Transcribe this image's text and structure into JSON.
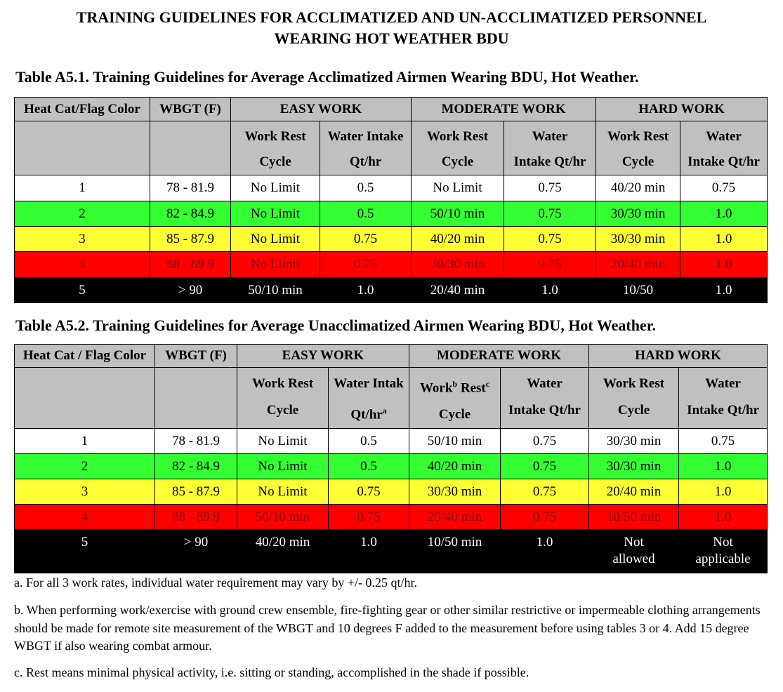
{
  "header": {
    "title_lines": [
      "TRAINING GUIDELINES FOR ACCLIMATIZED AND UN-ACCLIMATIZED PERSONNEL",
      "WEARING HOT WEATHER BDU"
    ]
  },
  "tables": [
    {
      "caption": "Table A5.1.  Training Guidelines for Average Acclimatized Airmen Wearing BDU, Hot Weather.",
      "headers": [
        "Heat Cat/Flag Color",
        "WBGT (F)",
        "EASY WORK",
        "MODERATE WORK",
        "HARD WORK"
      ],
      "subheaders": [
        [
          [
            "Work Rest"
          ],
          [
            "Cycle"
          ]
        ],
        [
          [
            "Water Intake"
          ],
          [
            "Qt/hr"
          ]
        ],
        [
          [
            "Work Rest"
          ],
          [
            "Cycle"
          ]
        ],
        [
          [
            "Water"
          ],
          [
            "Intake Qt/hr"
          ]
        ],
        [
          [
            "Work Rest"
          ],
          [
            "Cycle"
          ]
        ],
        [
          [
            "Water"
          ],
          [
            "Intake Qt/hr"
          ]
        ]
      ],
      "rows": [
        {
          "fill": "#ffffff",
          "ink": "#000000",
          "cells": [
            "1",
            "78 - 81.9",
            "No Limit",
            "0.5",
            "No Limit",
            "0.75",
            "40/20 min",
            "0.75"
          ]
        },
        {
          "fill": "#33ff33",
          "ink": "#000000",
          "cells": [
            "2",
            "82 - 84.9",
            "No Limit",
            "0.5",
            "50/10 min",
            "0.75",
            "30/30 min",
            "1.0"
          ]
        },
        {
          "fill": "#ffff33",
          "ink": "#000000",
          "cells": [
            "3",
            "85 - 87.9",
            "No Limit",
            "0.75",
            "40/20 min",
            "0.75",
            "30/30 min",
            "1.0"
          ]
        },
        {
          "fill": "#ff0000",
          "ink": "#8a0000",
          "cells": [
            "4",
            "88 - 89.9",
            "No Limit",
            "0.75",
            "30/30 min",
            "0.75",
            "20/40 min",
            "1.0"
          ]
        },
        {
          "fill": "#000000",
          "ink": "#ffffff",
          "cells": [
            "5",
            "> 90",
            "50/10 min",
            "1.0",
            "20/40 min",
            "1.0",
            "10/50",
            "1.0"
          ]
        }
      ]
    },
    {
      "caption": "Table A5.2.  Training Guidelines for Average Unacclimatized Airmen Wearing BDU, Hot Weather.",
      "headers": [
        "Heat Cat / Flag Color",
        "WBGT (F)",
        "EASY WORK",
        "MODERATE WORK",
        "HARD WORK"
      ],
      "subheaders": [
        [
          [
            "Work Rest"
          ],
          [
            "Cycle"
          ]
        ],
        [
          [
            "Water Intak"
          ],
          [
            "Qt/hr",
            {
              "sup": "a"
            }
          ]
        ],
        [
          [
            "Work",
            {
              "sup": "b"
            },
            " Rest",
            {
              "sup": "c"
            }
          ],
          [
            "Cycle"
          ]
        ],
        [
          [
            "Water"
          ],
          [
            "Intake Qt/hr"
          ]
        ],
        [
          [
            "Work Rest"
          ],
          [
            "Cycle"
          ]
        ],
        [
          [
            "Water"
          ],
          [
            "Intake Qt/hr"
          ]
        ]
      ],
      "rows": [
        {
          "fill": "#ffffff",
          "ink": "#000000",
          "cells": [
            "1",
            "78 - 81.9",
            "No Limit",
            "0.5",
            "50/10 min",
            "0.75",
            "30/30 min",
            "0.75"
          ]
        },
        {
          "fill": "#33ff33",
          "ink": "#000000",
          "cells": [
            "2",
            "82 - 84.9",
            "No Limit",
            "0.5",
            "40/20 min",
            "0.75",
            "30/30 min",
            "1.0"
          ]
        },
        {
          "fill": "#ffff33",
          "ink": "#000000",
          "cells": [
            "3",
            "85 - 87.9",
            "No Limit",
            "0.75",
            "30/30 min",
            "0.75",
            "20/40 min",
            "1.0"
          ]
        },
        {
          "fill": "#ff0000",
          "ink": "#8a0000",
          "cells": [
            "4",
            "88 - 89.9",
            "50/10 min",
            "0.75",
            "20/40 min",
            "0.75",
            "10/50 min",
            "1.0"
          ]
        },
        {
          "fill": "#000000",
          "ink": "#ffffff",
          "cells": [
            "5",
            "> 90",
            "40/20 min",
            "1.0",
            "10/50 min",
            "1.0",
            "Not\nallowed",
            "Not\napplicable"
          ]
        }
      ]
    }
  ],
  "notes": [
    "a.  For all 3 work rates, individual water requirement may vary by +/- 0.25 qt/hr.",
    "b.  When performing work/exercise with ground crew ensemble, fire-fighting gear or other similar restrictive or impermeable clothing arrangements should be made for remote site measurement of the WBGT and 10 degrees F added to the measurement before using tables 3 or 4. Add 15 degree WBGT if also wearing combat armour.",
    "c.  Rest means minimal physical activity, i.e. sitting or standing, accomplished in the shade if possible."
  ]
}
